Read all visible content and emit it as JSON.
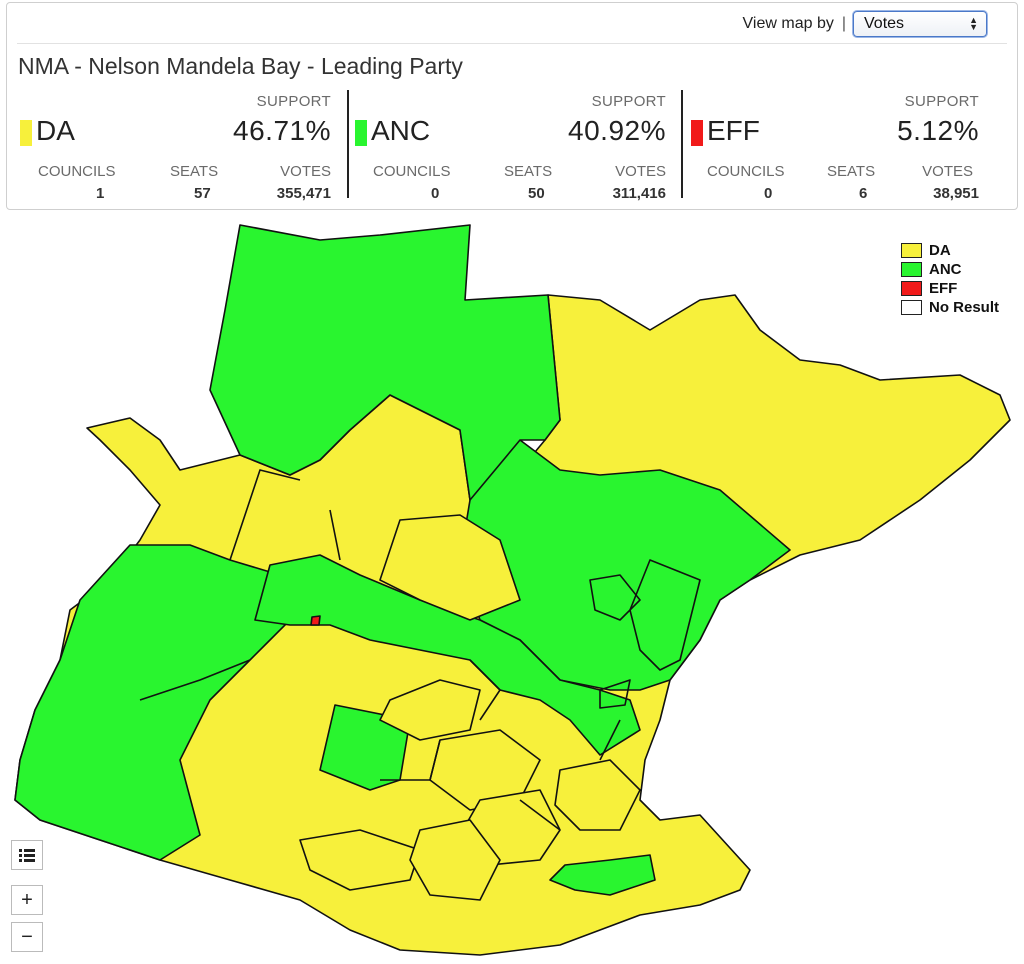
{
  "view": {
    "label": "View map by",
    "separator": "|",
    "selected": "Votes"
  },
  "title": "NMA - Nelson Mandela Bay - Leading Party",
  "labels": {
    "support": "SUPPORT",
    "councils": "COUNCILS",
    "seats": "SEATS",
    "votes": "VOTES"
  },
  "parties": [
    {
      "name": "DA",
      "support": "46.71%",
      "councils": "1",
      "seats": "57",
      "votes": "355,471",
      "color": "#f7f03b"
    },
    {
      "name": "ANC",
      "support": "40.92%",
      "councils": "0",
      "seats": "50",
      "votes": "311,416",
      "color": "#29f52f"
    },
    {
      "name": "EFF",
      "support": "5.12%",
      "councils": "0",
      "seats": "6",
      "votes": "38,951",
      "color": "#f11a1a"
    }
  ],
  "legend": [
    {
      "label": "DA",
      "color": "#f7f03b"
    },
    {
      "label": "ANC",
      "color": "#29f52f"
    },
    {
      "label": "EFF",
      "color": "#f11a1a"
    },
    {
      "label": "No Result",
      "color": "#ffffff"
    }
  ],
  "controls": {
    "layers_icon": "layers-list-icon",
    "zoom_in": "+",
    "zoom_out": "−"
  }
}
